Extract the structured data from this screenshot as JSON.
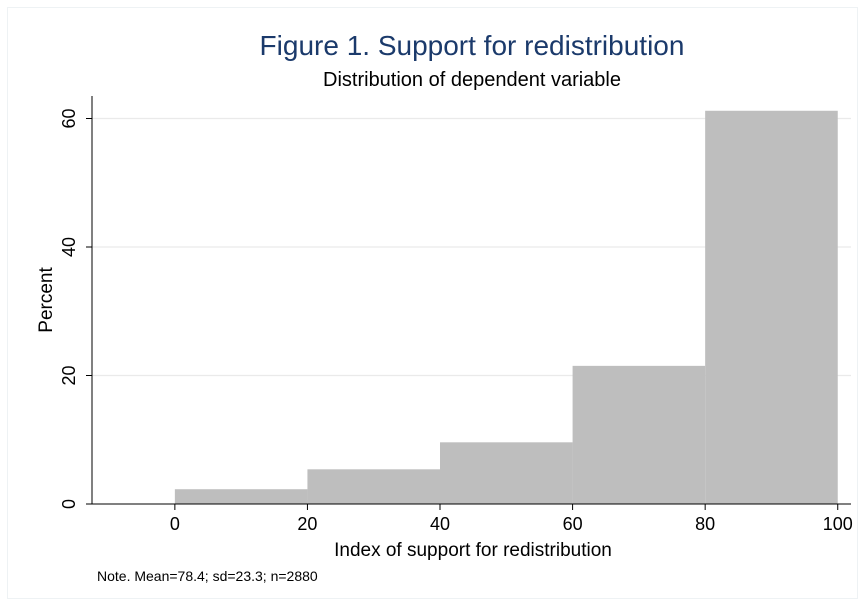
{
  "chart_data": {
    "type": "bar",
    "subtype": "histogram",
    "title": "Figure 1. Support for redistribution",
    "subtitle": "Distribution of dependent variable",
    "xlabel": "Index of support for redistribution",
    "ylabel": "Percent",
    "note": "Note. Mean=78.4; sd=23.3; n=2880",
    "bins": [
      {
        "x0": 0,
        "x1": 20,
        "value": 2.3
      },
      {
        "x0": 20,
        "x1": 40,
        "value": 5.4
      },
      {
        "x0": 40,
        "x1": 60,
        "value": 9.6
      },
      {
        "x0": 60,
        "x1": 80,
        "value": 21.5
      },
      {
        "x0": 80,
        "x1": 100,
        "value": 61.2
      }
    ],
    "xlim": [
      -12.5,
      102
    ],
    "ylim": [
      0,
      63.5
    ],
    "xticks": [
      0,
      20,
      40,
      60,
      80,
      100
    ],
    "xtick_labels": [
      "0",
      "20",
      "40",
      "60",
      "80",
      "100"
    ],
    "yticks": [
      0,
      20,
      40,
      60
    ],
    "ytick_labels": [
      "0",
      "20",
      "40",
      "60"
    ],
    "grid": "horizontal",
    "bar_color": "#bebebe",
    "gridline_color": "#eaeaea",
    "title_color": "#1b3a6b"
  }
}
